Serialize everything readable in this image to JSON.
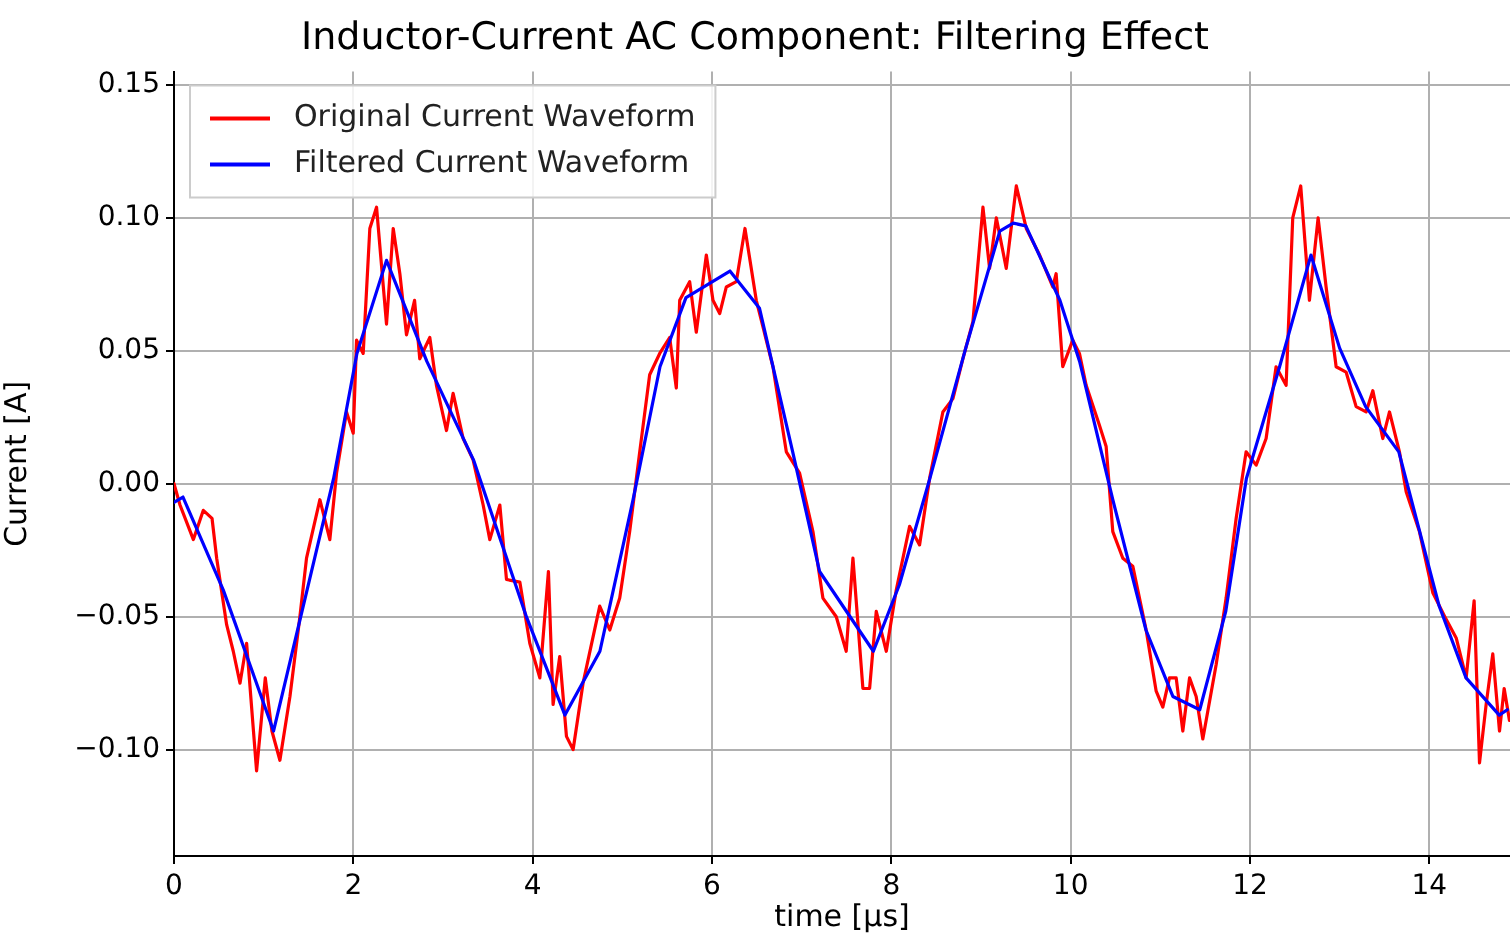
{
  "chart_data": {
    "type": "line",
    "title": "Inductor-Current AC Component: Filtering Effect",
    "xlabel": "time [μs]",
    "ylabel": "Current [A]",
    "xlim": [
      0,
      14.9
    ],
    "ylim": [
      -0.14,
      0.155
    ],
    "xticks": [
      0,
      2,
      4,
      6,
      8,
      10,
      12,
      14
    ],
    "yticks": [
      {
        "value": -0.1,
        "label": "−0.10"
      },
      {
        "value": -0.05,
        "label": "−0.05"
      },
      {
        "value": 0,
        "label": "0.00"
      },
      {
        "value": 0.05,
        "label": "0.05"
      },
      {
        "value": 0.1,
        "label": "0.10"
      },
      {
        "value": 0.15,
        "label": "0.15"
      }
    ],
    "grid": true,
    "legend": "top left",
    "marker": "none",
    "line_style": "solid",
    "series": [
      {
        "name": "Original Current Waveform",
        "color": "#ff0000",
        "x": [
          0,
          0.067,
          0.216,
          0.327,
          0.424,
          0.476,
          0.587,
          0.661,
          0.736,
          0.81,
          0.921,
          1.018,
          1.092,
          1.181,
          1.293,
          1.404,
          1.478,
          1.627,
          1.738,
          1.813,
          1.924,
          1.999,
          2.036,
          2.11,
          2.184,
          2.259,
          2.37,
          2.445,
          2.519,
          2.593,
          2.683,
          2.741,
          2.853,
          2.927,
          3.039,
          3.113,
          3.225,
          3.336,
          3.448,
          3.522,
          3.634,
          3.708,
          3.857,
          3.968,
          4.08,
          4.176,
          4.228,
          4.302,
          4.377,
          4.451,
          4.562,
          4.748,
          4.86,
          4.971,
          5.082,
          5.194,
          5.305,
          5.417,
          5.528,
          5.602,
          5.64,
          5.751,
          5.825,
          5.937,
          6.011,
          6.086,
          6.16,
          6.271,
          6.368,
          6.494,
          6.68,
          6.829,
          6.977,
          7.126,
          7.237,
          7.386,
          7.497,
          7.572,
          7.683,
          7.758,
          7.832,
          7.944,
          8.055,
          8.204,
          8.315,
          8.427,
          8.575,
          8.687,
          8.798,
          8.91,
          9.022,
          9.096,
          9.171,
          9.282,
          9.394,
          9.505,
          9.654,
          9.801,
          9.838,
          9.912,
          10.024,
          10.098,
          10.173,
          10.321,
          10.396,
          10.47,
          10.582,
          10.693,
          10.842,
          10.954,
          11.028,
          11.102,
          11.177,
          11.251,
          11.326,
          11.4,
          11.474,
          11.623,
          11.734,
          11.846,
          11.957,
          12.069,
          12.18,
          12.291,
          12.403,
          12.477,
          12.566,
          12.663,
          12.76,
          12.849,
          12.961,
          13.072,
          13.184,
          13.295,
          13.37,
          13.481,
          13.556,
          13.667,
          13.742,
          13.89,
          14.039,
          14.188,
          14.3,
          14.411,
          14.5,
          14.56,
          14.634,
          14.708,
          14.783,
          14.835,
          14.894
        ],
        "values": [
          0,
          -0.008,
          -0.021,
          -0.01,
          -0.013,
          -0.028,
          -0.053,
          -0.063,
          -0.075,
          -0.06,
          -0.108,
          -0.073,
          -0.093,
          -0.104,
          -0.08,
          -0.05,
          -0.028,
          -0.006,
          -0.021,
          0.004,
          0.027,
          0.019,
          0.054,
          0.049,
          0.096,
          0.104,
          0.06,
          0.096,
          0.079,
          0.056,
          0.069,
          0.047,
          0.055,
          0.037,
          0.02,
          0.034,
          0.017,
          0.009,
          -0.008,
          -0.021,
          -0.008,
          -0.036,
          -0.037,
          -0.06,
          -0.073,
          -0.033,
          -0.083,
          -0.065,
          -0.095,
          -0.1,
          -0.075,
          -0.046,
          -0.055,
          -0.043,
          -0.018,
          0.012,
          0.041,
          0.049,
          0.055,
          0.036,
          0.069,
          0.076,
          0.057,
          0.086,
          0.069,
          0.064,
          0.074,
          0.076,
          0.096,
          0.069,
          0.044,
          0.012,
          0.004,
          -0.018,
          -0.043,
          -0.05,
          -0.063,
          -0.028,
          -0.077,
          -0.077,
          -0.048,
          -0.063,
          -0.04,
          -0.016,
          -0.023,
          0.002,
          0.027,
          0.032,
          0.047,
          0.061,
          0.104,
          0.081,
          0.1,
          0.081,
          0.112,
          0.096,
          0.086,
          0.074,
          0.079,
          0.044,
          0.054,
          0.049,
          0.037,
          0.022,
          0.014,
          -0.018,
          -0.028,
          -0.031,
          -0.055,
          -0.078,
          -0.084,
          -0.073,
          -0.073,
          -0.093,
          -0.073,
          -0.08,
          -0.096,
          -0.068,
          -0.043,
          -0.013,
          0.012,
          0.007,
          0.017,
          0.044,
          0.037,
          0.1,
          0.112,
          0.069,
          0.1,
          0.074,
          0.044,
          0.042,
          0.029,
          0.027,
          0.035,
          0.017,
          0.027,
          0.012,
          -0.003,
          -0.018,
          -0.041,
          -0.051,
          -0.058,
          -0.073,
          -0.044,
          -0.105,
          -0.083,
          -0.064,
          -0.093,
          -0.077,
          -0.089
        ]
      },
      {
        "name": "Filtered Current Waveform",
        "color": "#0000ff",
        "x": [
          0,
          0.1,
          0.55,
          1.11,
          1.78,
          2.04,
          2.37,
          2.82,
          3.34,
          3.93,
          4.36,
          4.75,
          5.12,
          5.42,
          5.71,
          6.2,
          6.53,
          6.9,
          7.2,
          7.8,
          8.09,
          8.43,
          8.83,
          9.21,
          9.36,
          9.5,
          9.88,
          10.1,
          10.47,
          10.84,
          11.14,
          11.44,
          11.73,
          11.96,
          12.33,
          12.68,
          13.0,
          13.29,
          13.66,
          14.11,
          14.41,
          14.78,
          14.87
        ],
        "values": [
          -0.007,
          -0.005,
          -0.04,
          -0.093,
          0.002,
          0.049,
          0.084,
          0.046,
          0.009,
          -0.05,
          -0.087,
          -0.063,
          -0.006,
          0.044,
          0.07,
          0.08,
          0.066,
          0.012,
          -0.033,
          -0.063,
          -0.038,
          0.002,
          0.051,
          0.095,
          0.098,
          0.097,
          0.069,
          0.046,
          -0.006,
          -0.055,
          -0.08,
          -0.085,
          -0.048,
          0.002,
          0.044,
          0.086,
          0.051,
          0.029,
          0.012,
          -0.046,
          -0.073,
          -0.087,
          -0.085
        ]
      }
    ]
  }
}
